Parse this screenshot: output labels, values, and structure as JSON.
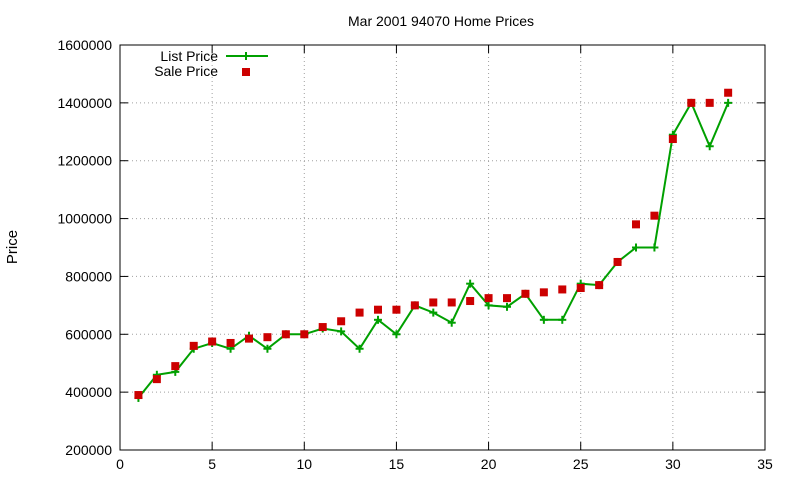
{
  "chart_data": {
    "type": "line",
    "title": "Mar 2001 94070 Home Prices",
    "xlabel": "",
    "ylabel": "Price",
    "xlim": [
      0,
      35
    ],
    "ylim": [
      200000,
      1600000
    ],
    "xticks": [
      0,
      5,
      10,
      15,
      20,
      25,
      30,
      35
    ],
    "yticks": [
      200000,
      400000,
      600000,
      800000,
      1000000,
      1200000,
      1400000,
      1600000
    ],
    "grid": true,
    "legend_position": "top-left",
    "series": [
      {
        "name": "List Price",
        "style": "line+plus",
        "color": "#00a000",
        "x": [
          1,
          2,
          3,
          4,
          5,
          6,
          7,
          8,
          9,
          10,
          11,
          12,
          13,
          14,
          15,
          16,
          17,
          18,
          19,
          20,
          21,
          22,
          23,
          24,
          25,
          26,
          27,
          28,
          29,
          30,
          31,
          32,
          33
        ],
        "y": [
          380000,
          460000,
          470000,
          550000,
          570000,
          550000,
          595000,
          550000,
          600000,
          600000,
          620000,
          610000,
          550000,
          650000,
          600000,
          700000,
          675000,
          640000,
          775000,
          700000,
          695000,
          740000,
          650000,
          650000,
          775000,
          770000,
          850000,
          900000,
          900000,
          1290000,
          1400000,
          1250000,
          1400000
        ]
      },
      {
        "name": "Sale Price",
        "style": "square",
        "color": "#cc0000",
        "x": [
          1,
          2,
          3,
          4,
          5,
          6,
          7,
          8,
          9,
          10,
          11,
          12,
          13,
          14,
          15,
          16,
          17,
          18,
          19,
          20,
          21,
          22,
          23,
          24,
          25,
          26,
          27,
          28,
          29,
          30,
          31,
          32,
          33
        ],
        "y": [
          390000,
          445000,
          490000,
          560000,
          575000,
          570000,
          585000,
          590000,
          600000,
          600000,
          625000,
          645000,
          675000,
          685000,
          685000,
          700000,
          710000,
          710000,
          715000,
          725000,
          725000,
          740000,
          745000,
          755000,
          760000,
          770000,
          850000,
          980000,
          1010000,
          1275000,
          1400000,
          1400000,
          1435000
        ]
      }
    ]
  }
}
